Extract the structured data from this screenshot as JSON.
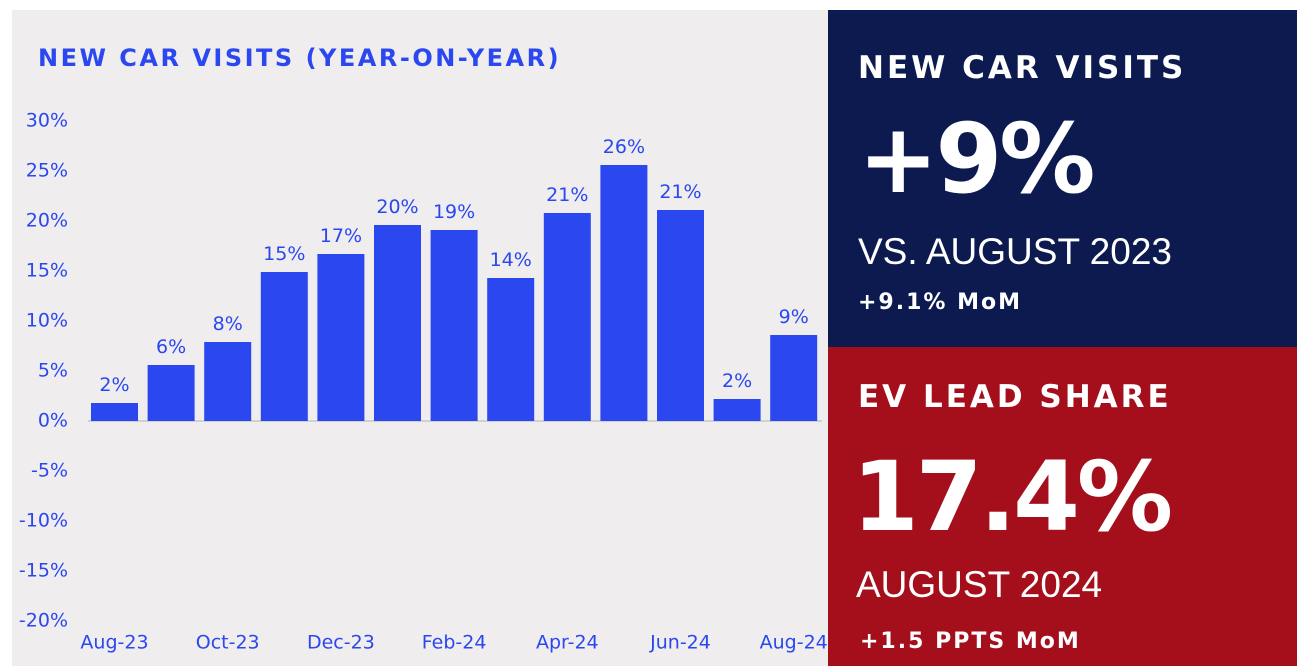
{
  "chart_data": {
    "type": "bar",
    "title": "NEW CAR VISITS (YEAR-ON-YEAR)",
    "categories": [
      "Aug-23",
      null,
      "Oct-23",
      null,
      "Dec-23",
      null,
      "Feb-24",
      null,
      "Apr-24",
      null,
      "Jun-24",
      null,
      "Aug-24"
    ],
    "values": [
      1.8,
      5.6,
      7.9,
      14.9,
      16.7,
      19.6,
      19.1,
      14.3,
      20.8,
      25.6,
      21.1,
      2.2,
      8.6
    ],
    "value_labels": [
      "2%",
      "6%",
      "8%",
      "15%",
      "17%",
      "20%",
      "19%",
      "14%",
      "21%",
      "26%",
      "21%",
      "2%",
      "9%"
    ],
    "color": "#2a47f0",
    "ylim": [
      -20,
      30
    ],
    "yticks": [
      {
        "value": -20,
        "label": "-20%"
      },
      {
        "value": -15,
        "label": "-15%"
      },
      {
        "value": -10,
        "label": "-10%"
      },
      {
        "value": -5,
        "label": "-5%"
      },
      {
        "value": 0,
        "label": "0%"
      },
      {
        "value": 5,
        "label": "5%"
      },
      {
        "value": 10,
        "label": "10%"
      },
      {
        "value": 15,
        "label": "15%"
      },
      {
        "value": 20,
        "label": "20%"
      },
      {
        "value": 25,
        "label": "25%"
      },
      {
        "value": 30,
        "label": "30%"
      }
    ],
    "grid": false
  },
  "panels": [
    {
      "title": "NEW CAR VISITS",
      "value": "+9%",
      "subtitle": "VS. AUGUST 2023",
      "note": "+9.1% MoM"
    },
    {
      "title": "EV LEAD SHARE",
      "value": "17.4%",
      "subtitle": "AUGUST 2024",
      "note": "+1.5 PPTS MoM"
    }
  ]
}
